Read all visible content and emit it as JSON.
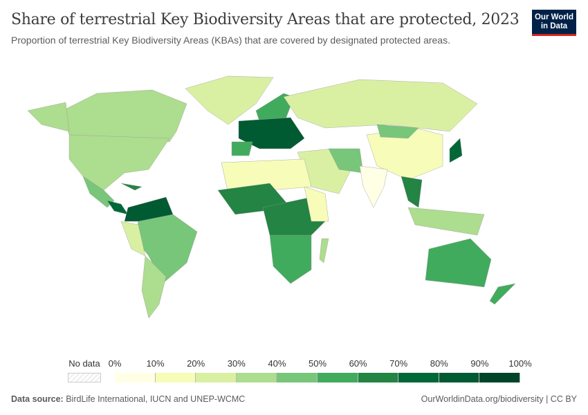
{
  "header": {
    "title": "Share of terrestrial Key Biodiversity Areas that are protected, 2023",
    "subtitle": "Proportion of terrestrial Key Biodiversity Areas (KBAs) that are covered by designated protected areas.",
    "logo_line1": "Our World",
    "logo_line2": "in Data"
  },
  "legend": {
    "no_data": "No data",
    "ticks": [
      "0%",
      "10%",
      "20%",
      "30%",
      "40%",
      "50%",
      "60%",
      "70%",
      "80%",
      "90%",
      "100%"
    ],
    "colors": [
      "#ffffe5",
      "#f7fcb9",
      "#d9f0a3",
      "#addd8e",
      "#78c679",
      "#41ab5d",
      "#238443",
      "#006837",
      "#005a32",
      "#004529"
    ]
  },
  "footer": {
    "source_label": "Data source:",
    "source": "BirdLife International, IUCN and UNEP-WCMC",
    "link": "OurWorldinData.org/biodiversity | CC BY"
  }
}
